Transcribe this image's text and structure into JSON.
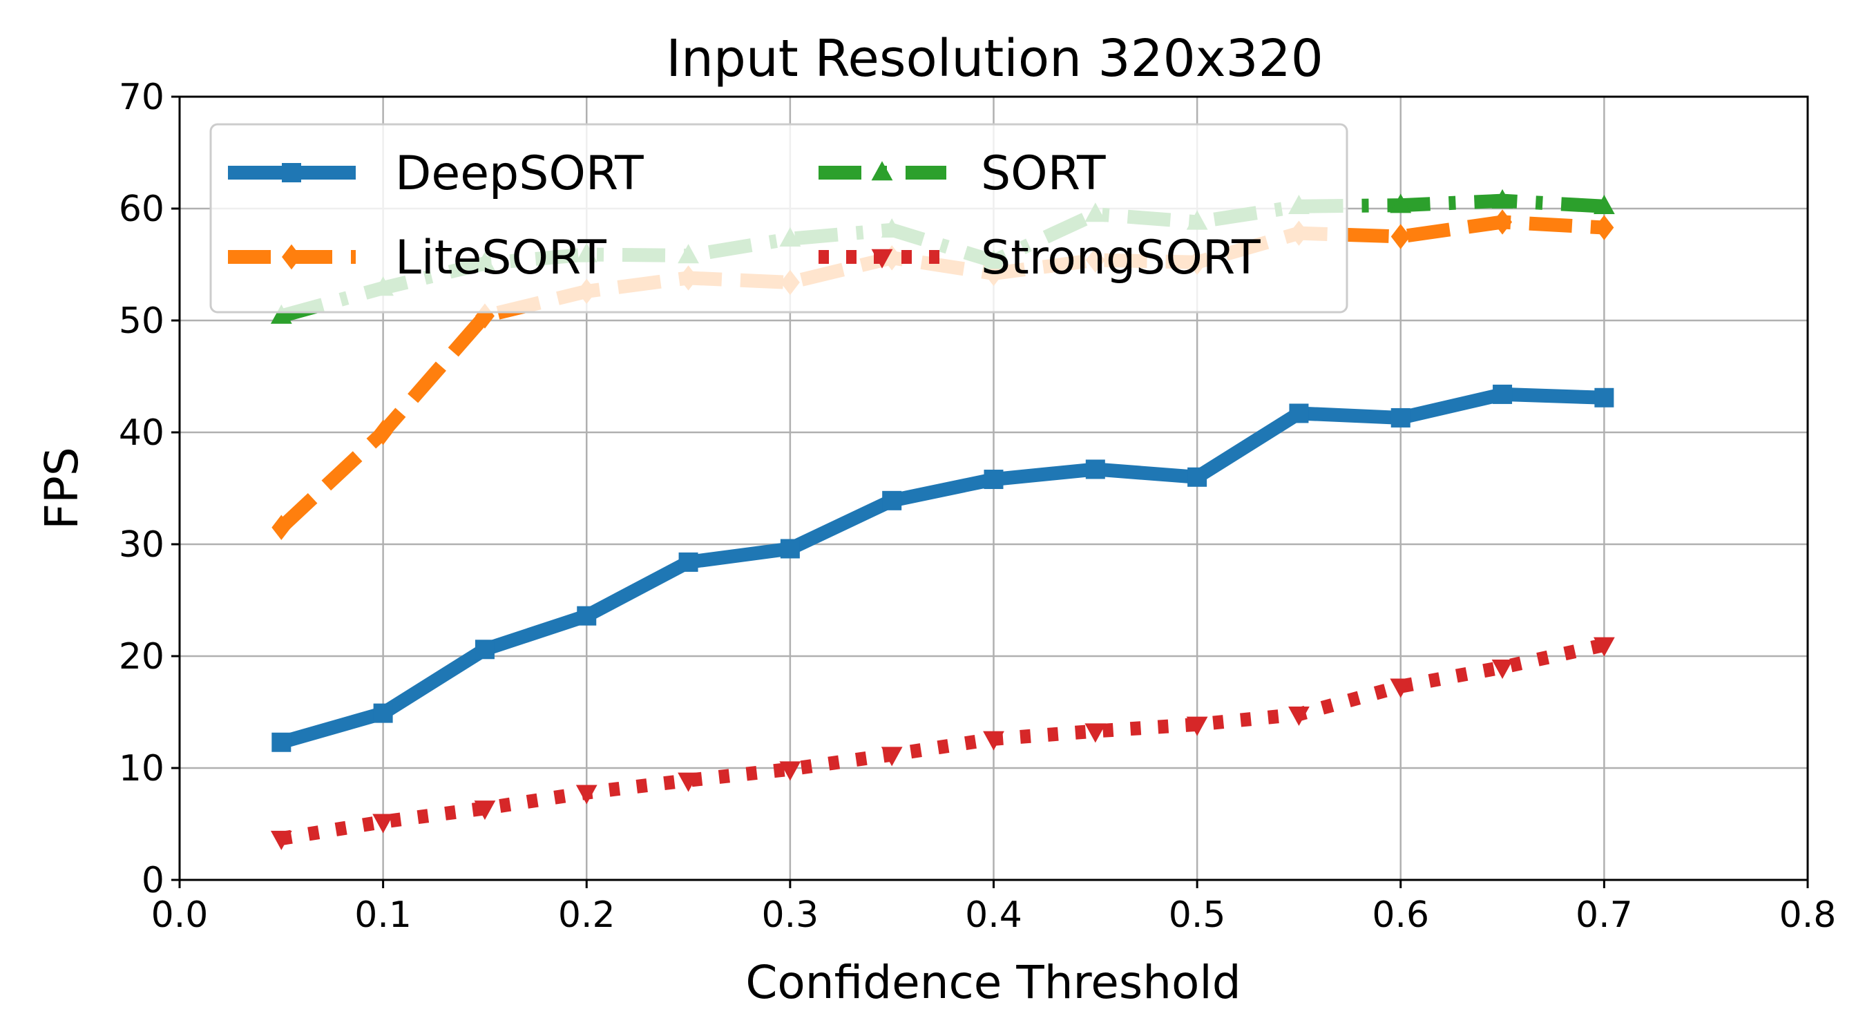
{
  "chart_data": {
    "type": "line",
    "title": "Input Resolution 320x320",
    "xlabel": "Confidence Threshold",
    "ylabel": "FPS",
    "xlim": [
      0.0,
      0.8
    ],
    "ylim": [
      0,
      70
    ],
    "xticks": [
      "0.0",
      "0.1",
      "0.2",
      "0.3",
      "0.4",
      "0.5",
      "0.6",
      "0.7",
      "0.8"
    ],
    "yticks": [
      "0",
      "10",
      "20",
      "30",
      "40",
      "50",
      "60",
      "70"
    ],
    "grid": true,
    "legend_position": "top-left",
    "x": [
      0.05,
      0.1,
      0.15,
      0.2,
      0.25,
      0.3,
      0.35,
      0.4,
      0.45,
      0.5,
      0.55,
      0.6,
      0.65,
      0.7
    ],
    "series": [
      {
        "name": "DeepSORT",
        "color": "#1f77b4",
        "style": "solid",
        "marker": "square",
        "values": [
          12.3,
          14.9,
          20.6,
          23.6,
          28.4,
          29.6,
          33.9,
          35.8,
          36.7,
          36.0,
          41.7,
          41.3,
          43.4,
          43.1
        ]
      },
      {
        "name": "LiteSORT",
        "color": "#ff7f0e",
        "style": "dashed",
        "marker": "diamond",
        "values": [
          31.5,
          40.0,
          50.4,
          52.6,
          53.8,
          53.4,
          55.6,
          54.2,
          55.4,
          55.2,
          57.8,
          57.5,
          58.8,
          58.3
        ]
      },
      {
        "name": "SORT",
        "color": "#2ca02c",
        "style": "dashdot",
        "marker": "triangle-up",
        "values": [
          50.4,
          52.9,
          55.1,
          55.9,
          55.8,
          57.3,
          58.1,
          55.3,
          59.5,
          58.8,
          60.2,
          60.3,
          60.7,
          60.2
        ]
      },
      {
        "name": "StrongSORT",
        "color": "#d62728",
        "style": "dotted",
        "marker": "triangle-down",
        "values": [
          3.7,
          5.2,
          6.4,
          7.8,
          8.9,
          9.9,
          11.2,
          12.6,
          13.3,
          13.9,
          14.8,
          17.3,
          19.0,
          21.0
        ]
      }
    ]
  }
}
